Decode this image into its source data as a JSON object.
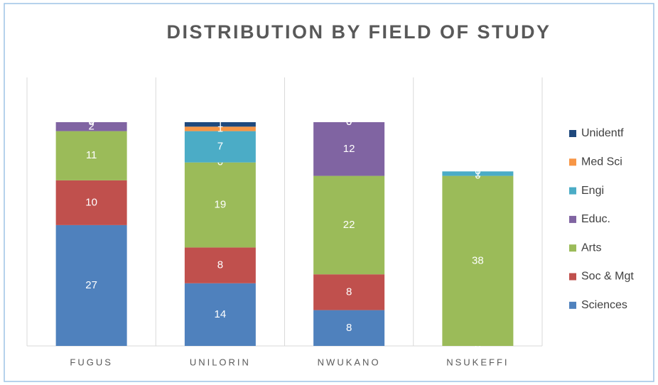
{
  "chart_data": {
    "type": "stacked_bar",
    "title": "DISTRIBUTION BY FIELD OF STUDY",
    "categories": [
      "FUGUS",
      "UNILORIN",
      "NWUKANO",
      "NSUKEFFI"
    ],
    "ylim": [
      0,
      60
    ],
    "series": [
      {
        "name": "Sciences",
        "color": "#4f81bd",
        "values": [
          27,
          14,
          8,
          0
        ]
      },
      {
        "name": "Soc & Mgt",
        "color": "#c0504d",
        "values": [
          10,
          8,
          8,
          0
        ]
      },
      {
        "name": "Arts",
        "color": "#9bbb59",
        "values": [
          11,
          19,
          22,
          38
        ]
      },
      {
        "name": "Educ.",
        "color": "#8064a2",
        "values": [
          2,
          0,
          12,
          0
        ]
      },
      {
        "name": "Engi",
        "color": "#4bacc6",
        "values": [
          0,
          7,
          0,
          1
        ]
      },
      {
        "name": "Med Sci",
        "color": "#f79646",
        "values": [
          0,
          1,
          0,
          0
        ]
      },
      {
        "name": "Unidentf",
        "color": "#1f497d",
        "values": [
          0,
          1,
          0,
          0
        ]
      }
    ]
  }
}
